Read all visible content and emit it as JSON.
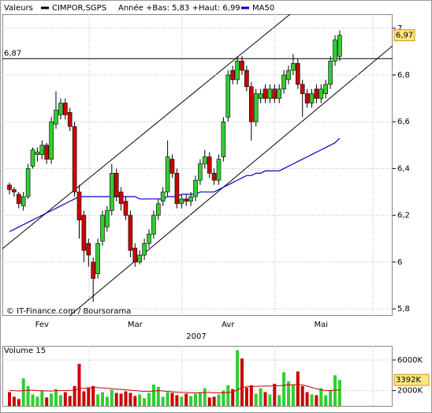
{
  "chart_data": [
    {
      "type": "candlestick",
      "title": "Valeurs",
      "name": "CIMPOR,SGPS",
      "color": "#000000",
      "stats": "Année +Bas: 5,83 +Haut: 6,99",
      "up_color": "#33cc33",
      "down_color": "#cc0000",
      "categories": [
        null,
        null,
        null,
        null,
        null,
        null,
        null,
        "Fev",
        null,
        null,
        null,
        null,
        null,
        null,
        null,
        null,
        null,
        null,
        null,
        null,
        null,
        null,
        null,
        null,
        null,
        null,
        null,
        "Mar",
        null,
        null,
        null,
        null,
        null,
        null,
        null,
        null,
        null,
        null,
        null,
        null,
        null,
        null,
        null,
        null,
        null,
        null,
        null,
        "Avr",
        null,
        null,
        null,
        null,
        null,
        null,
        null,
        null,
        null,
        null,
        null,
        null,
        null,
        null,
        null,
        null,
        null,
        null,
        null,
        "Mai",
        null,
        null,
        null,
        null
      ],
      "open": [
        6.33,
        6.31,
        6.29,
        6.24,
        6.28,
        6.41,
        6.46,
        6.46,
        6.5,
        6.44,
        6.59,
        6.63,
        6.68,
        6.64,
        6.58,
        6.3,
        6.2,
        6.08,
        6.0,
        5.95,
        6.09,
        6.15,
        6.22,
        6.38,
        6.3,
        6.26,
        6.2,
        6.06,
        6.0,
        6.03,
        6.08,
        6.12,
        6.2,
        6.26,
        6.3,
        6.44,
        6.38,
        6.25,
        6.27,
        6.26,
        6.28,
        6.35,
        6.42,
        6.45,
        6.38,
        6.35,
        6.45,
        6.62,
        6.82,
        6.78,
        6.86,
        6.82,
        6.75,
        6.6,
        6.7,
        6.74,
        6.7,
        6.74,
        6.7,
        6.74,
        6.78,
        6.82,
        6.85,
        6.76,
        6.72,
        6.68,
        6.74,
        6.7,
        6.72,
        6.76,
        6.86,
        6.88
      ],
      "high": [
        6.34,
        6.32,
        6.3,
        6.3,
        6.42,
        6.49,
        6.49,
        6.52,
        6.51,
        6.62,
        6.73,
        6.7,
        6.7,
        6.66,
        6.6,
        6.33,
        6.22,
        6.1,
        6.02,
        6.1,
        6.22,
        6.24,
        6.42,
        6.4,
        6.32,
        6.28,
        6.22,
        6.08,
        6.05,
        6.1,
        6.14,
        6.22,
        6.27,
        6.32,
        6.52,
        6.46,
        6.4,
        6.29,
        6.29,
        6.3,
        6.37,
        6.44,
        6.48,
        6.47,
        6.4,
        6.46,
        6.62,
        6.82,
        6.84,
        6.88,
        6.88,
        6.84,
        6.77,
        6.74,
        6.74,
        6.76,
        6.76,
        6.76,
        6.76,
        6.82,
        6.84,
        6.89,
        6.87,
        6.78,
        6.74,
        6.74,
        6.76,
        6.76,
        6.78,
        6.88,
        6.97,
        6.99
      ],
      "low": [
        6.29,
        6.28,
        6.23,
        6.22,
        6.27,
        6.4,
        6.43,
        6.44,
        6.42,
        6.42,
        6.57,
        6.61,
        6.61,
        6.56,
        6.28,
        6.1,
        6.0,
        5.98,
        5.83,
        5.93,
        6.07,
        6.13,
        6.2,
        6.26,
        6.22,
        6.18,
        6.02,
        5.98,
        5.99,
        6.01,
        6.06,
        6.1,
        6.18,
        6.24,
        6.28,
        6.36,
        6.23,
        6.23,
        6.24,
        6.24,
        6.26,
        6.33,
        6.4,
        6.36,
        6.33,
        6.33,
        6.43,
        6.6,
        6.76,
        6.76,
        6.8,
        6.73,
        6.52,
        6.58,
        6.68,
        6.68,
        6.68,
        6.68,
        6.68,
        6.72,
        6.76,
        6.8,
        6.74,
        6.62,
        6.66,
        6.66,
        6.68,
        6.68,
        6.7,
        6.74,
        6.84,
        6.86
      ],
      "close": [
        6.31,
        6.3,
        6.25,
        6.28,
        6.4,
        6.48,
        6.47,
        6.5,
        6.44,
        6.6,
        6.65,
        6.68,
        6.63,
        6.58,
        6.3,
        6.18,
        6.05,
        6.03,
        5.93,
        6.08,
        6.2,
        6.22,
        6.38,
        6.28,
        6.25,
        6.2,
        6.05,
        6.0,
        6.03,
        6.08,
        6.12,
        6.2,
        6.25,
        6.3,
        6.45,
        6.38,
        6.25,
        6.27,
        6.26,
        6.28,
        6.35,
        6.42,
        6.45,
        6.38,
        6.35,
        6.44,
        6.6,
        6.8,
        6.78,
        6.86,
        6.82,
        6.75,
        6.6,
        6.72,
        6.72,
        6.7,
        6.74,
        6.7,
        6.74,
        6.8,
        6.82,
        6.85,
        6.76,
        6.72,
        6.68,
        6.72,
        6.7,
        6.74,
        6.76,
        6.86,
        6.95,
        6.97
      ],
      "series": [
        {
          "name": "MA50",
          "color": "#0000cc",
          "values": [
            6.13,
            6.14,
            6.15,
            6.16,
            6.17,
            6.18,
            6.19,
            6.2,
            6.21,
            6.22,
            6.23,
            6.24,
            6.25,
            6.26,
            6.27,
            6.28,
            6.28,
            6.28,
            6.28,
            6.28,
            6.28,
            6.28,
            6.28,
            6.28,
            6.28,
            6.28,
            6.28,
            6.28,
            6.27,
            6.27,
            6.27,
            6.27,
            6.27,
            6.27,
            6.28,
            6.28,
            6.28,
            6.29,
            6.29,
            6.29,
            6.29,
            6.3,
            6.3,
            6.3,
            6.3,
            6.31,
            6.32,
            6.33,
            6.34,
            6.35,
            6.36,
            6.37,
            6.37,
            6.38,
            6.38,
            6.39,
            6.39,
            6.39,
            6.39,
            6.4,
            6.41,
            6.42,
            6.43,
            6.44,
            6.45,
            6.46,
            6.47,
            6.48,
            6.49,
            6.5,
            6.51,
            6.53
          ]
        }
      ],
      "hline": {
        "value": 6.87,
        "label": "6,87"
      },
      "last": {
        "value": 6.97,
        "label": "6,97"
      },
      "ylim": [
        5.77,
        7.06
      ],
      "yticks": [
        {
          "value": 5.8,
          "label": "5,8"
        },
        6,
        {
          "value": 6.2,
          "label": "6,2"
        },
        {
          "value": 6.4,
          "label": "6,4"
        },
        {
          "value": 6.6,
          "label": "6,6"
        },
        {
          "value": 6.8,
          "label": "6,8"
        },
        7
      ],
      "grid": true,
      "xlabel": "2007",
      "source": "© IT-Finance.com / Boursorama"
    },
    {
      "type": "bar",
      "title": "Volume 15",
      "values": [
        1800,
        1200,
        900,
        3600,
        2600,
        1500,
        1200,
        2000,
        1100,
        1600,
        2200,
        1400,
        1800,
        1300,
        2600,
        5500,
        1900,
        2400,
        2600,
        1500,
        1800,
        1200,
        2100,
        1700,
        1600,
        1900,
        1700,
        1300,
        1500,
        1000,
        1700,
        2800,
        2500,
        1200,
        1800,
        1700,
        1400,
        1200,
        1600,
        1300,
        1600,
        1800,
        2300,
        1100,
        1200,
        1500,
        2000,
        2700,
        2200,
        7300,
        6200,
        2400,
        2700,
        1600,
        2300,
        1800,
        1500,
        2900,
        1400,
        4400,
        3200,
        2800,
        4500,
        2600,
        1800,
        1500,
        1400,
        2300,
        1400,
        2100,
        4000,
        3392
      ],
      "series": [
        {
          "color": "#cc0000",
          "values": [
            2000,
            2000,
            1950,
            2000,
            2050,
            2050,
            2000,
            2000,
            1950,
            1950,
            2000,
            2000,
            2000,
            2000,
            2050,
            2300,
            2300,
            2350,
            2400,
            2400,
            2350,
            2300,
            2250,
            2200,
            2150,
            2100,
            2050,
            2000,
            1950,
            1900,
            1900,
            1950,
            2000,
            1950,
            1900,
            1850,
            1800,
            1750,
            1750,
            1700,
            1700,
            1700,
            1750,
            1750,
            1700,
            1700,
            1700,
            1750,
            1800,
            2100,
            2400,
            2500,
            2550,
            2550,
            2600,
            2600,
            2600,
            2650,
            2650,
            2700,
            2750,
            2750,
            2800,
            2750,
            2600,
            2400,
            2250,
            2100,
            2000,
            2000,
            2050,
            2100
          ]
        }
      ],
      "last": {
        "value": 3392,
        "label": "3392K"
      },
      "ylim": [
        0,
        7850
      ],
      "yticks": [
        {
          "value": 6000,
          "label": "6000K"
        },
        {
          "value": 2000,
          "label": "2000K"
        }
      ],
      "grid": true
    }
  ]
}
